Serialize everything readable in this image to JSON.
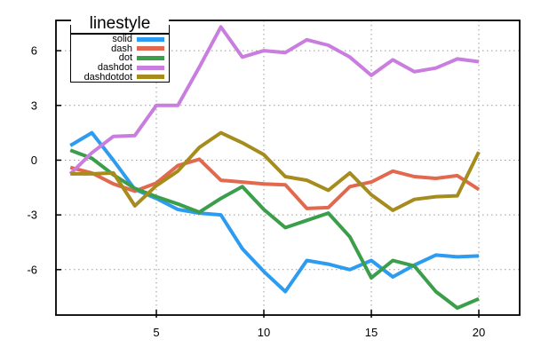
{
  "legend": {
    "title": "linestyle",
    "entries": [
      {
        "label": "solid",
        "color": "#2D9CF0"
      },
      {
        "label": "dash",
        "color": "#E2694D"
      },
      {
        "label": "dot",
        "color": "#3A9E4A"
      },
      {
        "label": "dashdot",
        "color": "#C97DDF"
      },
      {
        "label": "dashdotdot",
        "color": "#A68B1D"
      }
    ]
  },
  "chart_data": {
    "type": "line",
    "title": "linestyle",
    "xlabel": "",
    "ylabel": "",
    "x": [
      1,
      2,
      3,
      4,
      5,
      6,
      7,
      8,
      9,
      10,
      11,
      12,
      13,
      14,
      15,
      16,
      17,
      18,
      19,
      20
    ],
    "series": [
      {
        "name": "solid",
        "color": "#2D9CF0",
        "values": [
          0.8,
          1.5,
          0.0,
          -1.6,
          -2.1,
          -2.7,
          -2.9,
          -3.0,
          -4.85,
          -6.1,
          -7.2,
          -5.5,
          -5.7,
          -6.0,
          -5.5,
          -6.4,
          -5.75,
          -5.2,
          -5.3,
          -5.25
        ]
      },
      {
        "name": "dash",
        "color": "#E2694D",
        "values": [
          -0.4,
          -0.7,
          -1.3,
          -1.7,
          -1.25,
          -0.3,
          0.05,
          -1.1,
          -1.2,
          -1.3,
          -1.35,
          -2.65,
          -2.6,
          -1.45,
          -1.2,
          -0.6,
          -0.9,
          -1.0,
          -0.85,
          -1.6
        ]
      },
      {
        "name": "dot",
        "color": "#3A9E4A",
        "values": [
          0.55,
          0.1,
          -0.8,
          -1.55,
          -2.0,
          -2.4,
          -2.85,
          -2.1,
          -1.45,
          -2.7,
          -3.7,
          -3.3,
          -2.9,
          -4.2,
          -6.45,
          -5.5,
          -5.8,
          -7.2,
          -8.1,
          -7.6
        ]
      },
      {
        "name": "dashdot",
        "color": "#C97DDF",
        "values": [
          -0.75,
          0.4,
          1.3,
          1.35,
          3.0,
          3.0,
          5.1,
          7.3,
          5.65,
          6.0,
          5.9,
          6.6,
          6.3,
          5.65,
          4.65,
          5.5,
          4.85,
          5.05,
          5.55,
          5.4
        ]
      },
      {
        "name": "dashdotdot",
        "color": "#A68B1D",
        "values": [
          -0.75,
          -0.75,
          -0.7,
          -2.5,
          -1.4,
          -0.6,
          0.7,
          1.5,
          0.95,
          0.3,
          -0.9,
          -1.1,
          -1.65,
          -0.7,
          -1.9,
          -2.75,
          -2.15,
          -2.0,
          -1.95,
          0.45
        ]
      }
    ],
    "x_ticks": [
      5,
      10,
      15,
      20
    ],
    "y_ticks": [
      6,
      3,
      0,
      -3,
      -6
    ],
    "xlim": [
      0.33,
      21.9
    ],
    "ylim": [
      -8.49,
      7.66
    ],
    "grid": "dotted",
    "grid_color": "#999999",
    "border_color": "#000000",
    "legend_position": "top-left"
  }
}
